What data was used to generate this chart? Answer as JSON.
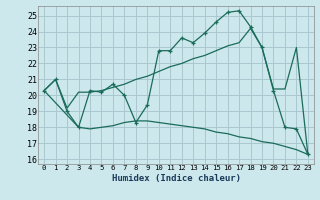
{
  "background_color": "#cde8ec",
  "grid_color": "#aac8d0",
  "line_color": "#1a6b5a",
  "xlabel": "Humidex (Indice chaleur)",
  "xlim": [
    -0.5,
    23.5
  ],
  "ylim": [
    15.7,
    25.6
  ],
  "yticks": [
    16,
    17,
    18,
    19,
    20,
    21,
    22,
    23,
    24,
    25
  ],
  "xticks": [
    0,
    1,
    2,
    3,
    4,
    5,
    6,
    7,
    8,
    9,
    10,
    11,
    12,
    13,
    14,
    15,
    16,
    17,
    18,
    19,
    20,
    21,
    22,
    23
  ],
  "line1_x": [
    0,
    1,
    2,
    3,
    4,
    5,
    6,
    7,
    8,
    9,
    10,
    11,
    12,
    13,
    14,
    15,
    16,
    17,
    18,
    19,
    20,
    21,
    22,
    23
  ],
  "line1_y": [
    20.3,
    21.0,
    19.0,
    18.0,
    20.3,
    20.2,
    20.7,
    20.0,
    18.3,
    19.4,
    22.8,
    22.8,
    23.6,
    23.3,
    23.9,
    24.6,
    25.2,
    25.3,
    24.3,
    23.0,
    20.3,
    18.0,
    17.9,
    16.3
  ],
  "line2_x": [
    0,
    1,
    2,
    3,
    4,
    5,
    6,
    7,
    8,
    9,
    10,
    11,
    12,
    13,
    14,
    15,
    16,
    17,
    18,
    19,
    20,
    21,
    22,
    23
  ],
  "line2_y": [
    20.3,
    21.0,
    19.2,
    20.2,
    20.2,
    20.3,
    20.5,
    20.7,
    21.0,
    21.2,
    21.5,
    21.8,
    22.0,
    22.3,
    22.5,
    22.8,
    23.1,
    23.3,
    24.2,
    23.0,
    20.4,
    20.4,
    23.0,
    16.3
  ],
  "line3_x": [
    0,
    3,
    4,
    5,
    6,
    7,
    8,
    9,
    10,
    11,
    12,
    13,
    14,
    15,
    16,
    17,
    18,
    19,
    20,
    21,
    22,
    23
  ],
  "line3_y": [
    20.3,
    18.0,
    17.9,
    18.0,
    18.1,
    18.3,
    18.4,
    18.4,
    18.3,
    18.2,
    18.1,
    18.0,
    17.9,
    17.7,
    17.6,
    17.4,
    17.3,
    17.1,
    17.0,
    16.8,
    16.6,
    16.3
  ]
}
